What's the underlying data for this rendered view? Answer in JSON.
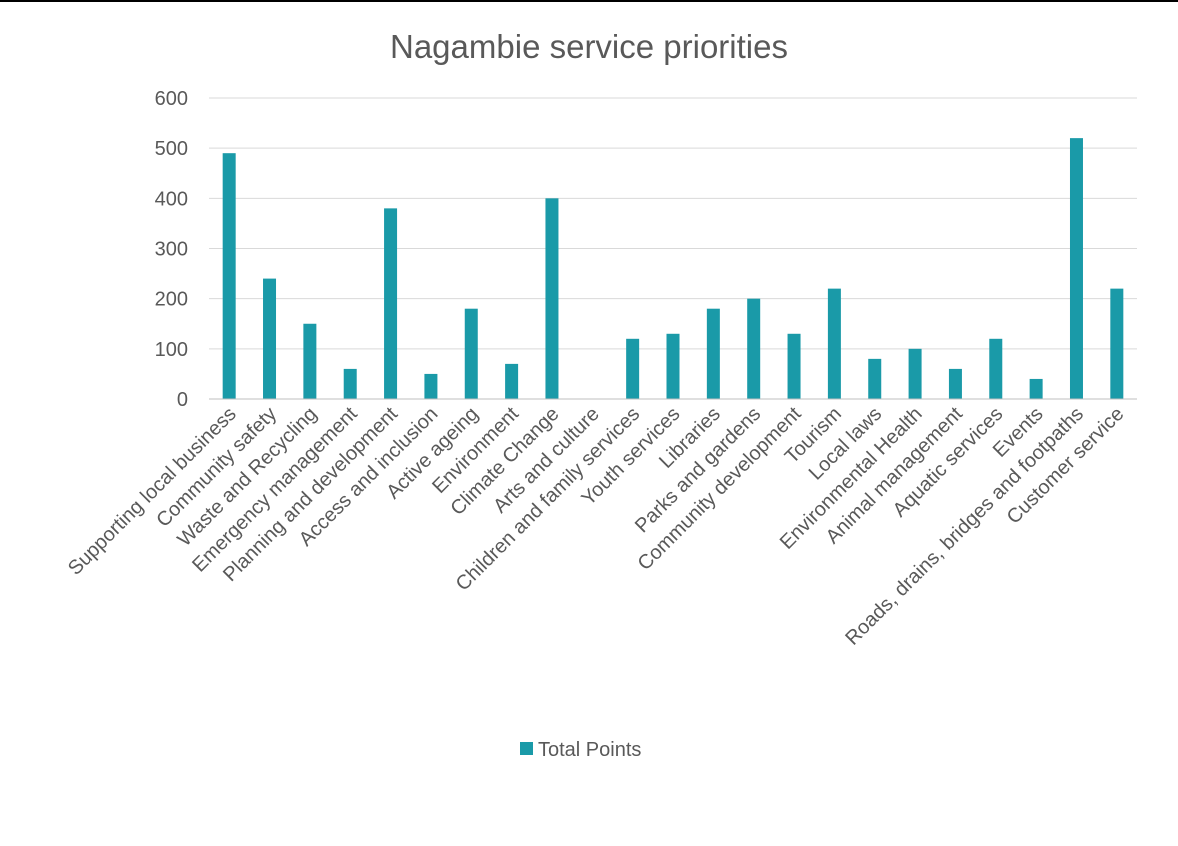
{
  "chart_data": {
    "type": "bar",
    "title": "Nagambie service priorities",
    "xlabel": "",
    "ylabel": "",
    "ylim": [
      0,
      600
    ],
    "yticks": [
      "0",
      "100",
      "200",
      "300",
      "400",
      "500",
      "600"
    ],
    "grid": true,
    "legend_position": "bottom",
    "categories": [
      "Supporting local business",
      "Community safety",
      "Waste and Recycling",
      "Emergency management",
      "Planning and development",
      "Access and inclusion",
      "Active ageing",
      "Environment",
      "Climate Change",
      "Arts and culture",
      "Children and family services",
      "Youth services",
      "Libraries",
      "Parks and gardens",
      "Community development",
      "Tourism",
      "Local laws",
      "Environmental Health",
      "Animal management",
      "Aquatic services",
      "Events",
      "Roads, drains, bridges and footpaths",
      "Customer service"
    ],
    "series": [
      {
        "name": "Total Points",
        "color": "#1a9aa8",
        "values": [
          490,
          240,
          150,
          60,
          380,
          50,
          180,
          70,
          400,
          0,
          120,
          130,
          180,
          200,
          130,
          220,
          80,
          100,
          60,
          120,
          40,
          520,
          220
        ]
      }
    ]
  }
}
